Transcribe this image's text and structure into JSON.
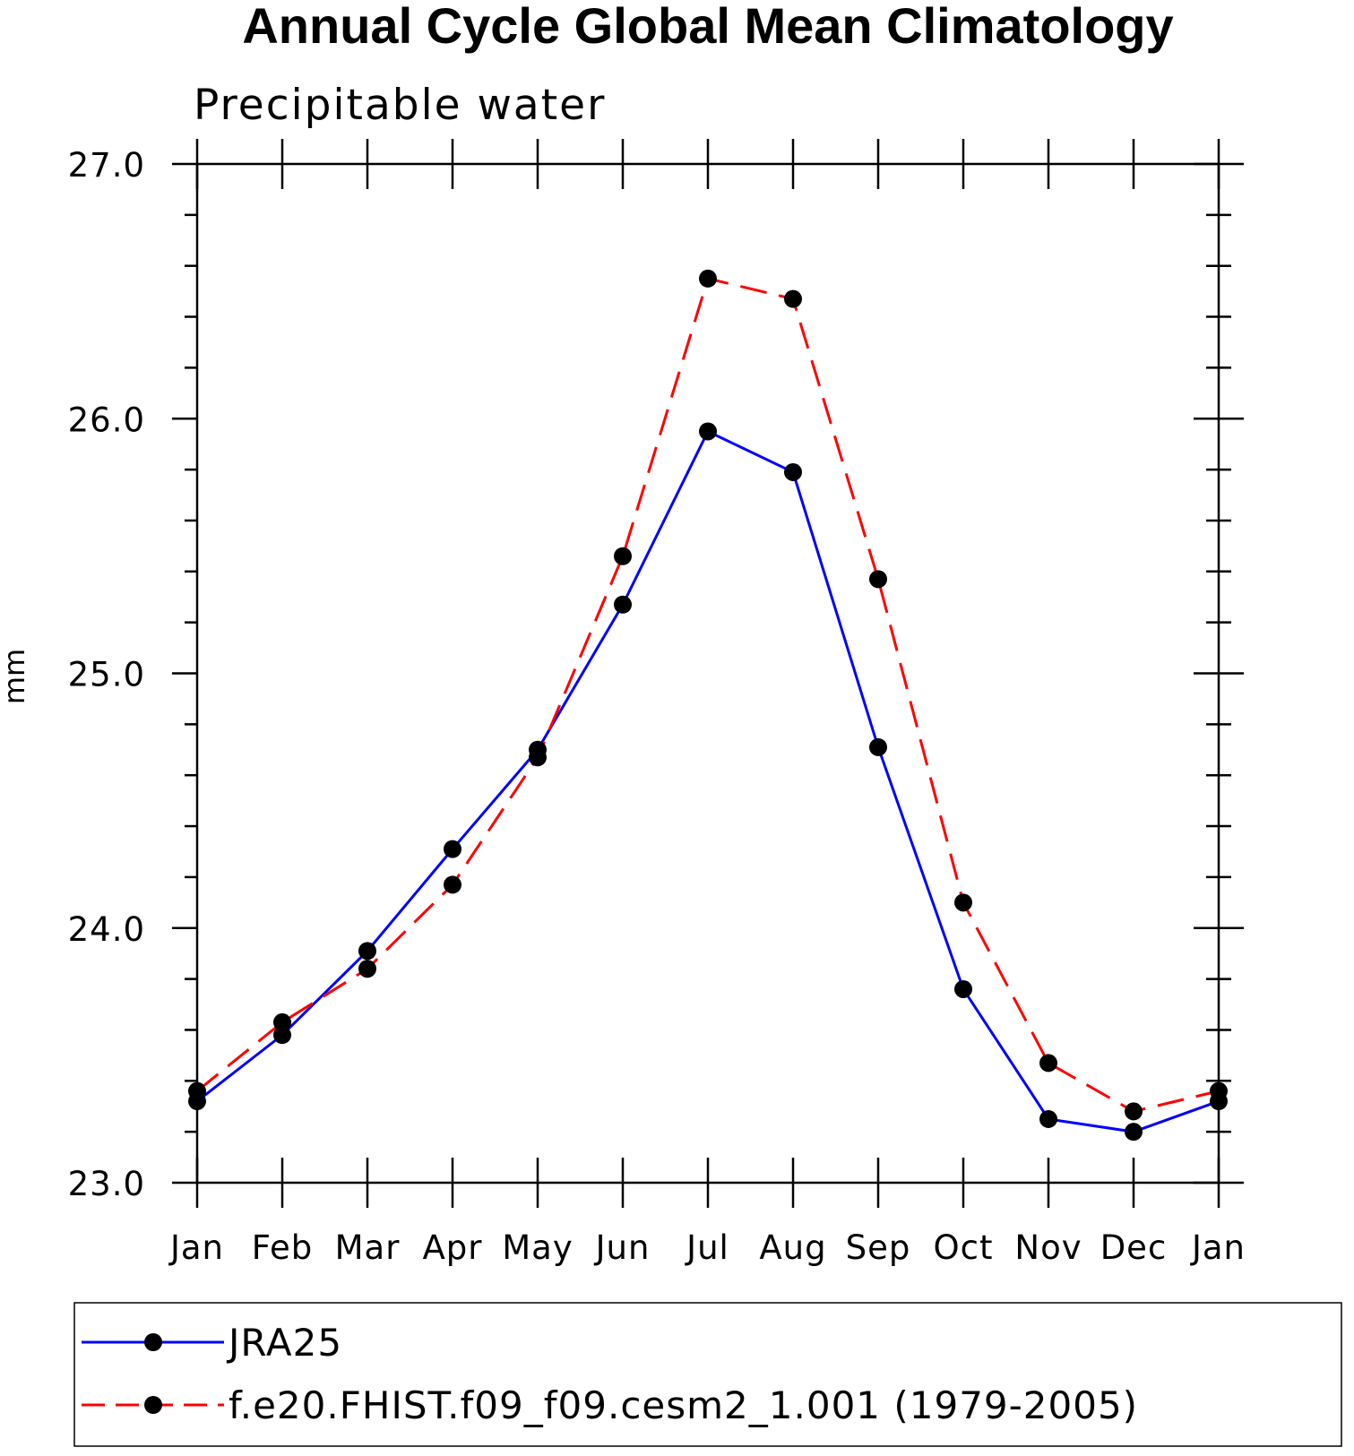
{
  "chart_data": {
    "type": "line",
    "title": "Annual Cycle Global Mean Climatology",
    "subtitle": "Precipitable water",
    "ylabel": "mm",
    "xlabel": "",
    "categories": [
      "Jan",
      "Feb",
      "Mar",
      "Apr",
      "May",
      "Jun",
      "Jul",
      "Aug",
      "Sep",
      "Oct",
      "Nov",
      "Dec",
      "Jan"
    ],
    "ylim": [
      23.0,
      27.0
    ],
    "yticks": [
      23.0,
      24.0,
      25.0,
      26.0,
      27.0
    ],
    "ytick_labels": [
      "23.0",
      "24.0",
      "25.0",
      "26.0",
      "27.0"
    ],
    "grid": false,
    "legend_position": "bottom",
    "series": [
      {
        "name": "JRA25",
        "color": "#0000ff",
        "line_style": "solid",
        "marker": "filled-circle",
        "values": [
          23.32,
          23.58,
          23.91,
          24.31,
          24.7,
          25.27,
          25.95,
          25.79,
          24.71,
          23.76,
          23.25,
          23.2,
          23.32
        ]
      },
      {
        "name": "f.e20.FHIST.f09_f09.cesm2_1.001 (1979-2005)",
        "color": "#ff0000",
        "line_style": "dashed",
        "marker": "filled-circle",
        "values": [
          23.36,
          23.63,
          23.84,
          24.17,
          24.67,
          25.46,
          26.55,
          26.47,
          25.37,
          24.1,
          23.47,
          23.28,
          23.36
        ]
      }
    ]
  }
}
